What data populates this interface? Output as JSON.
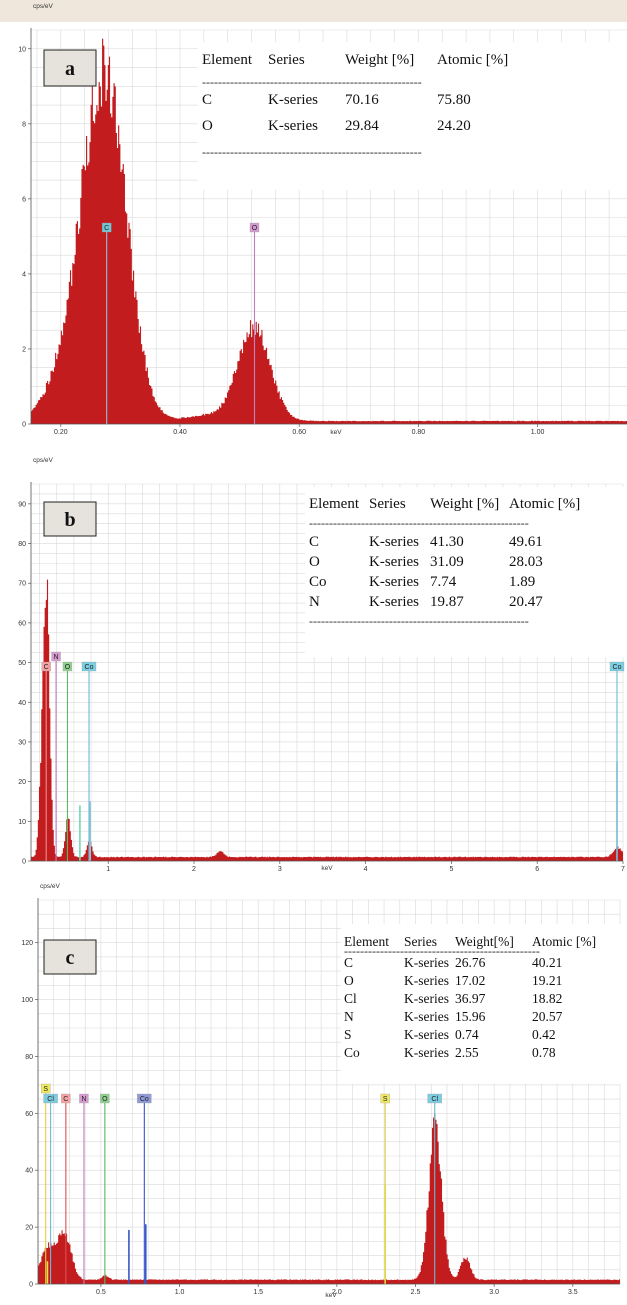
{
  "colors": {
    "spectrum": "#c21c1e",
    "grid": "#d9d9d9",
    "label_box_bg": "#e6e2dc"
  },
  "chart_data": [
    {
      "type": "area",
      "panel_label": "a",
      "ylabel": "cps/eV",
      "xlabel": "keV",
      "xlim": [
        0.15,
        1.15
      ],
      "ylim": [
        0,
        10.5
      ],
      "x_ticks": [
        "0.20",
        "0.40",
        "0.60",
        "0.80",
        "1.00"
      ],
      "x_tick_values": [
        0.2,
        0.4,
        0.6,
        0.8,
        1.0
      ],
      "y_ticks": [
        "0",
        "2",
        "4",
        "6",
        "8",
        "10"
      ],
      "y_tick_values": [
        0,
        2,
        4,
        6,
        8,
        10
      ],
      "peaks": [
        {
          "center": 0.277,
          "height": 8.0,
          "width": 0.035
        },
        {
          "center": 0.233,
          "height": 2.3,
          "width": 0.04
        },
        {
          "center": 0.523,
          "height": 2.5,
          "width": 0.027
        },
        {
          "center": 0.44,
          "height": 0.15,
          "width": 0.03
        }
      ],
      "baseline": 0.08,
      "element_labels": [
        {
          "label": "C",
          "x": 0.277,
          "color": "#6fc6d4",
          "line_color": "#8cc4d8"
        },
        {
          "label": "O",
          "x": 0.525,
          "color": "#d69ad0",
          "line_color": "#c080c0"
        }
      ],
      "table": {
        "header": [
          "Element",
          "Series",
          "Weight [%]",
          "Atomic [%]"
        ],
        "rows": [
          [
            "C",
            "K-series",
            "70.16",
            "75.80"
          ],
          [
            "O",
            "K-series",
            "29.84",
            "24.20"
          ]
        ],
        "rule": "-------------------------------------------------------"
      }
    },
    {
      "type": "area",
      "panel_label": "b",
      "ylabel": "cps/eV",
      "xlabel": "keV",
      "xlim": [
        0.1,
        7.0
      ],
      "ylim": [
        0,
        95
      ],
      "x_ticks": [
        "1",
        "2",
        "3",
        "4",
        "5",
        "6",
        "7"
      ],
      "x_tick_values": [
        1,
        2,
        3,
        4,
        5,
        6,
        7
      ],
      "y_ticks": [
        "0",
        "10",
        "20",
        "30",
        "40",
        "50",
        "60",
        "70",
        "80",
        "90"
      ],
      "y_tick_values": [
        0,
        10,
        20,
        30,
        40,
        50,
        60,
        70,
        80,
        90
      ],
      "peaks": [
        {
          "center": 0.277,
          "height": 64,
          "width": 0.035
        },
        {
          "center": 0.22,
          "height": 20,
          "width": 0.03
        },
        {
          "center": 0.525,
          "height": 10,
          "width": 0.03
        },
        {
          "center": 0.776,
          "height": 4,
          "width": 0.03
        },
        {
          "center": 2.3,
          "height": 1.6,
          "width": 0.04
        },
        {
          "center": 6.93,
          "height": 2.5,
          "width": 0.05
        }
      ],
      "baseline": 1.0,
      "spikes": [
        {
          "x": 0.67,
          "height": 14,
          "color": "#6fd6b8"
        },
        {
          "x": 0.79,
          "height": 15,
          "color": "#8cc8dc"
        },
        {
          "x": 6.93,
          "height": 25,
          "color": "#8cc8dc"
        }
      ],
      "element_labels": [
        {
          "label": "C",
          "x": 0.277,
          "color": "#f4a4a4",
          "line_color": "#e89090"
        },
        {
          "label": "N",
          "x": 0.392,
          "color": "#d69ad0",
          "line_color": "#c080c0",
          "high": true
        },
        {
          "label": "O",
          "x": 0.525,
          "color": "#8fd08f",
          "line_color": "#5cb85c"
        },
        {
          "label": "Co",
          "x": 0.776,
          "color": "#7ccde0",
          "line_color": "#6fb8d0"
        },
        {
          "label": "Co",
          "x": 6.93,
          "color": "#7ccde0",
          "line_color": "#6fb8d0"
        }
      ],
      "table": {
        "header": [
          "Element",
          "Series",
          "Weight [%]",
          "Atomic [%]"
        ],
        "rows": [
          [
            "C",
            "K-series",
            "41.30",
            "49.61"
          ],
          [
            "O",
            "K-series",
            "31.09",
            "28.03"
          ],
          [
            "Co",
            "K-series",
            "7.74",
            "1.89"
          ],
          [
            "N",
            "K-series",
            "19.87",
            "20.47"
          ]
        ],
        "rule": "-------------------------------------------------------"
      }
    },
    {
      "type": "area",
      "panel_label": "c",
      "ylabel": "cps/eV",
      "xlabel": "keV",
      "xlim": [
        0.1,
        3.8
      ],
      "ylim": [
        0,
        135
      ],
      "x_ticks": [
        "0.5",
        "1.0",
        "1.5",
        "2.0",
        "2.5",
        "3.0",
        "3.5"
      ],
      "x_tick_values": [
        0.5,
        1.0,
        1.5,
        2.0,
        2.5,
        3.0,
        3.5
      ],
      "y_ticks": [
        "0",
        "20",
        "40",
        "60",
        "80",
        "100",
        "120"
      ],
      "y_tick_values": [
        0,
        20,
        40,
        60,
        80,
        100,
        120
      ],
      "peaks": [
        {
          "center": 0.17,
          "height": 12,
          "width": 0.05
        },
        {
          "center": 0.27,
          "height": 15,
          "width": 0.04
        },
        {
          "center": 2.622,
          "height": 54,
          "width": 0.04
        },
        {
          "center": 2.815,
          "height": 8,
          "width": 0.03
        },
        {
          "center": 0.525,
          "height": 1.5,
          "width": 0.02
        }
      ],
      "baseline": 1.5,
      "spikes": [
        {
          "x": 0.678,
          "height": 19,
          "color": "#3a56c8"
        },
        {
          "x": 0.785,
          "height": 21,
          "color": "#3a56c8"
        },
        {
          "x": 2.307,
          "height": 35,
          "color": "#e4e440"
        },
        {
          "x": 0.16,
          "height": 8,
          "color": "#e4e440"
        }
      ],
      "element_labels": [
        {
          "label": "S",
          "x": 0.149,
          "color": "#f0e860",
          "line_color": "#e0d040",
          "high": true
        },
        {
          "label": "Cl",
          "x": 0.18,
          "color": "#7ccde0",
          "line_color": "#6fb8d0"
        },
        {
          "label": "C",
          "x": 0.277,
          "color": "#f4a4a4",
          "line_color": "#e05050"
        },
        {
          "label": "N",
          "x": 0.392,
          "color": "#d69ad0",
          "line_color": "#c080c0"
        },
        {
          "label": "O",
          "x": 0.525,
          "color": "#8fd08f",
          "line_color": "#5cb85c"
        },
        {
          "label": "Co",
          "x": 0.776,
          "color": "#8f9ad8",
          "line_color": "#3a56c8"
        },
        {
          "label": "S",
          "x": 2.307,
          "color": "#f0e860",
          "line_color": "#e0d040"
        },
        {
          "label": "Cl",
          "x": 2.622,
          "color": "#7ccde0",
          "line_color": "#6fb8d0"
        }
      ],
      "table": {
        "header": [
          "Element",
          "Series",
          "Weight[%]",
          "Atomic [%]"
        ],
        "rows": [
          [
            "C",
            "K-series",
            "26.76",
            "40.21"
          ],
          [
            "O",
            "K-series",
            "17.02",
            "19.21"
          ],
          [
            "Cl",
            "K-series",
            "36.97",
            "18.82"
          ],
          [
            "N",
            "K-series",
            "15.96",
            "20.57"
          ],
          [
            "S",
            "K-series",
            "0.74",
            "0.42"
          ],
          [
            "Co",
            "K-series",
            "2.55",
            "0.78"
          ]
        ],
        "rule": "-------------------------------------------------"
      }
    }
  ]
}
